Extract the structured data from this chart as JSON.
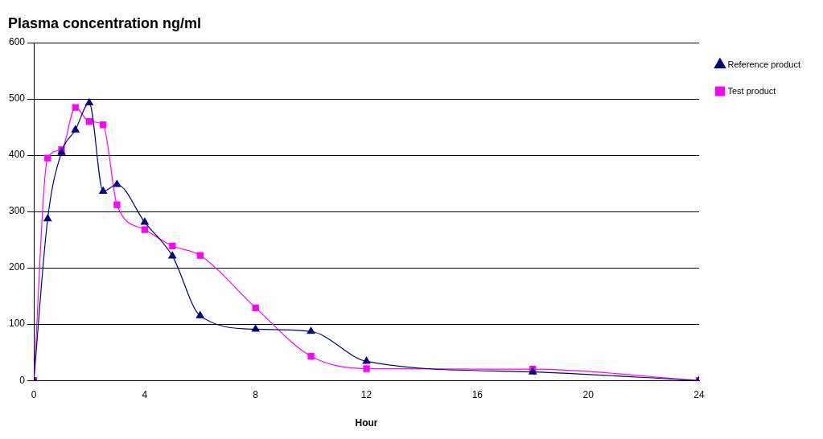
{
  "chart_data": {
    "type": "line",
    "xlabel": "Hour",
    "ylabel": "Plasma concentration ng/ml",
    "x": [
      0,
      0.5,
      1,
      1.5,
      2,
      2.5,
      3,
      4,
      5,
      6,
      8,
      10,
      12,
      18,
      24
    ],
    "series": [
      {
        "name": "Reference product",
        "color": "#000080",
        "marker": "triangle",
        "values": [
          0,
          287,
          405,
          445,
          493,
          336,
          348,
          281,
          221,
          115,
          91,
          87,
          34,
          15,
          0
        ]
      },
      {
        "name": "Test product",
        "color": "#ff00ff",
        "marker": "square",
        "values": [
          0,
          395,
          410,
          485,
          460,
          454,
          312,
          268,
          239,
          222,
          129,
          43,
          21,
          20,
          0
        ]
      }
    ],
    "xlim": [
      0,
      24
    ],
    "xticks": [
      0,
      4,
      8,
      12,
      16,
      20,
      24
    ],
    "ylim": [
      0,
      600
    ],
    "yticks": [
      0,
      100,
      200,
      300,
      400,
      500,
      600
    ],
    "grid": "y",
    "legend": "top right"
  }
}
